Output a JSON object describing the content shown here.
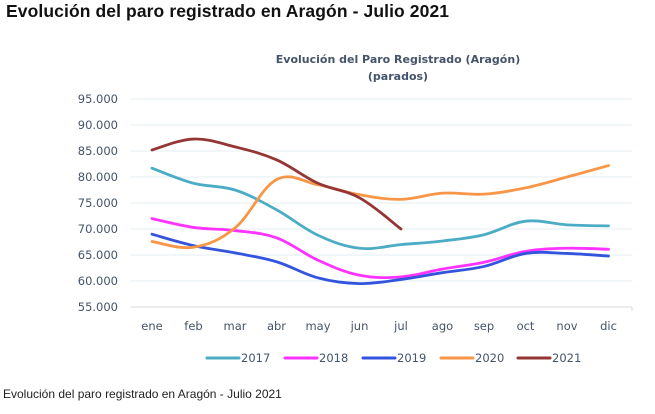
{
  "page": {
    "title": "Evolución del paro registrado en Aragón - Julio 2021",
    "caption": "Evolución del paro registrado en Aragón - Julio 2021"
  },
  "chart_data": {
    "type": "line",
    "title": "Evolución del Paro Registrado (Aragón)",
    "subtitle": "(parados)",
    "xlabel": "",
    "ylabel": "",
    "categories": [
      "ene",
      "feb",
      "mar",
      "abr",
      "may",
      "jun",
      "jul",
      "ago",
      "sep",
      "oct",
      "nov",
      "dic"
    ],
    "ylim": [
      55000,
      95000
    ],
    "yticks": [
      55000,
      60000,
      65000,
      70000,
      75000,
      80000,
      85000,
      90000,
      95000
    ],
    "ytick_labels": [
      "55.000",
      "60.000",
      "65.000",
      "70.000",
      "75.000",
      "80.000",
      "85.000",
      "90.000",
      "95.000"
    ],
    "grid": true,
    "legend_position": "bottom",
    "series": [
      {
        "name": "2017",
        "color": "#4bacc6",
        "values": [
          81700,
          78800,
          77500,
          73700,
          68800,
          66300,
          67000,
          67700,
          68900,
          71500,
          70800,
          70600
        ]
      },
      {
        "name": "2018",
        "color": "#ff33ff",
        "values": [
          72000,
          70300,
          69700,
          68300,
          64000,
          61100,
          60800,
          62300,
          63600,
          65700,
          66300,
          66100
        ]
      },
      {
        "name": "2019",
        "color": "#3355dd",
        "values": [
          69000,
          66800,
          65400,
          63700,
          60600,
          59500,
          60300,
          61600,
          62800,
          65300,
          65300,
          64800
        ]
      },
      {
        "name": "2020",
        "color": "#f79646",
        "values": [
          67600,
          66500,
          70200,
          79500,
          78500,
          76600,
          75700,
          76900,
          76700,
          77900,
          80000,
          82200
        ]
      },
      {
        "name": "2021",
        "color": "#943634",
        "values": [
          85200,
          87300,
          85800,
          83300,
          78800,
          76000,
          70000
        ]
      }
    ]
  }
}
